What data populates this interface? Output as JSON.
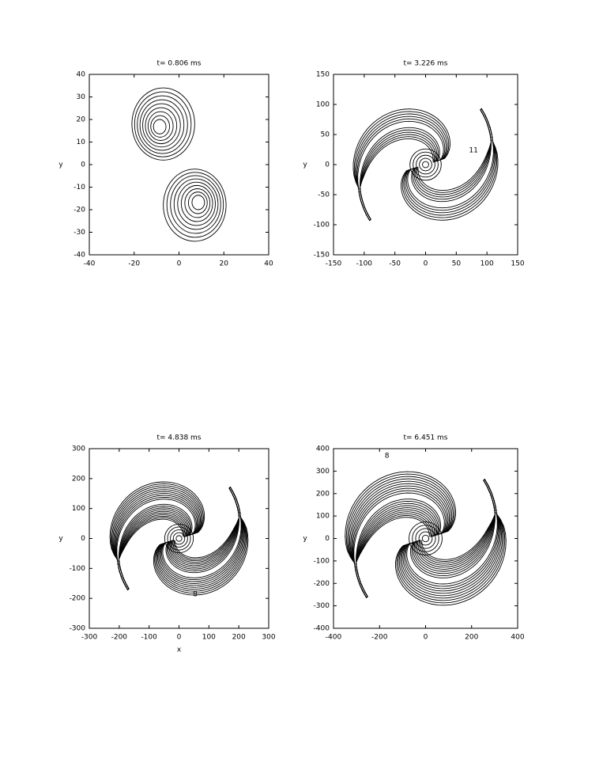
{
  "chart_data": [
    {
      "type": "contour",
      "title": "t= 0.806 ms",
      "ylabel": "y",
      "xlim": [
        -40,
        40
      ],
      "xticks": [
        -40,
        -20,
        0,
        20,
        40
      ],
      "ylim": [
        -40,
        40
      ],
      "yticks": [
        -40,
        -30,
        -20,
        -10,
        0,
        10,
        20,
        30,
        40
      ],
      "contour_labels": []
    },
    {
      "type": "contour",
      "title": "t= 3.226 ms",
      "ylabel": "y",
      "xlim": [
        -150,
        150
      ],
      "xticks": [
        -150,
        -100,
        -50,
        0,
        50,
        100,
        150
      ],
      "ylim": [
        -150,
        150
      ],
      "yticks": [
        -150,
        -100,
        -50,
        0,
        50,
        100,
        150
      ],
      "contour_labels": [
        "11"
      ]
    },
    {
      "type": "contour",
      "title": "t= 4.838 ms",
      "ylabel": "y",
      "xlabel": "x",
      "xlim": [
        -300,
        300
      ],
      "xticks": [
        -300,
        -200,
        -100,
        0,
        100,
        200,
        300
      ],
      "ylim": [
        -300,
        300
      ],
      "yticks": [
        -300,
        -200,
        -100,
        0,
        100,
        200,
        300
      ],
      "contour_labels": [
        "8"
      ]
    },
    {
      "type": "contour",
      "title": "t= 6.451 ms",
      "ylabel": "y",
      "xlim": [
        -400,
        400
      ],
      "xticks": [
        -400,
        -200,
        0,
        200,
        400
      ],
      "ylim": [
        -400,
        400
      ],
      "yticks": [
        -400,
        -300,
        -200,
        -100,
        0,
        100,
        200,
        300,
        400
      ],
      "contour_labels": [
        "8"
      ]
    }
  ]
}
